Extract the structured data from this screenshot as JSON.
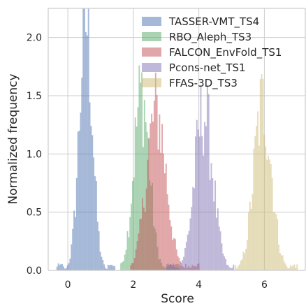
{
  "chart_data": {
    "type": "histogram",
    "title": "",
    "xlabel": "Score",
    "ylabel": "Normalized frequency",
    "xlim": [
      -0.6,
      7.25
    ],
    "ylim": [
      0,
      2.25
    ],
    "xticks": [
      0,
      2,
      4,
      6
    ],
    "xtick_labels": [
      "0",
      "2",
      "4",
      "6"
    ],
    "yticks": [
      0.0,
      0.5,
      1.0,
      1.5,
      2.0
    ],
    "ytick_labels": [
      "0.0",
      "0.5",
      "1.0",
      "1.5",
      "2.0"
    ],
    "grid": true,
    "legend_position": "top-right",
    "bin_width": 0.04,
    "series": [
      {
        "name": "TASSER-VMT_TS4",
        "color": "#4c72b0",
        "mean": 0.55,
        "sd": 0.2,
        "peak": 2.15,
        "min": -0.35,
        "max": 1.45
      },
      {
        "name": "RBO_Aleph_TS3",
        "color": "#55a868",
        "mean": 2.25,
        "sd": 0.24,
        "peak": 1.52,
        "min": 1.6,
        "max": 3.4
      },
      {
        "name": "FALCON_EnvFold_TS1",
        "color": "#c44e52",
        "mean": 2.7,
        "sd": 0.3,
        "peak": 1.36,
        "min": 1.9,
        "max": 4.0
      },
      {
        "name": "Pcons-net_TS1",
        "color": "#8172b2",
        "mean": 4.15,
        "sd": 0.28,
        "peak": 1.36,
        "min": 3.0,
        "max": 5.05
      },
      {
        "name": "FFAS-3D_TS3",
        "color": "#ccb974",
        "mean": 5.95,
        "sd": 0.27,
        "peak": 1.42,
        "min": 5.1,
        "max": 7.0
      }
    ]
  }
}
